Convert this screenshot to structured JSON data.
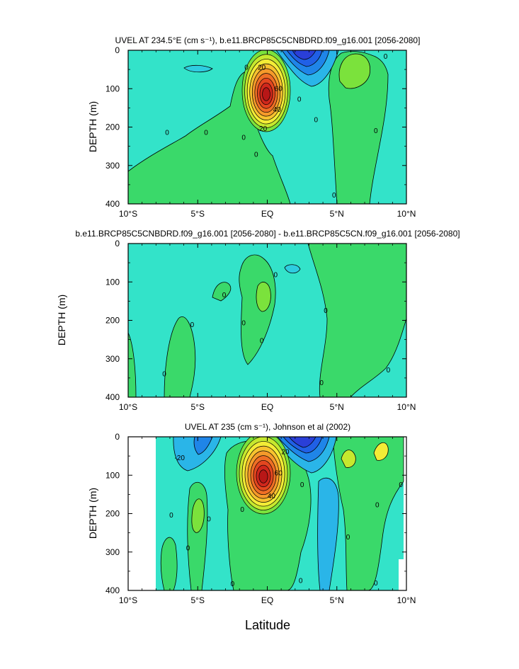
{
  "chart_data": [
    {
      "type": "contour",
      "title": "UVEL AT 234.5°E (cm s⁻¹), b.e11.BRCP85C5CNBDRD.f09_g16.001 [2056-2080]",
      "ylabel": "DEPTH (m)",
      "xlabel": "",
      "x_ticks": [
        "10°S",
        "5°S",
        "EQ",
        "5°N",
        "10°N"
      ],
      "y_ticks": [
        "0",
        "100",
        "200",
        "300",
        "400"
      ],
      "xlim": [
        -10,
        10
      ],
      "ylim": [
        400,
        0
      ],
      "contour_interval": 10,
      "contour_labels": [
        {
          "text": "20",
          "lat": -0.4,
          "depth": 45
        },
        {
          "text": "60",
          "lat": 0.8,
          "depth": 100
        },
        {
          "text": "40",
          "lat": 0.7,
          "depth": 155
        },
        {
          "text": "20",
          "lat": -0.3,
          "depth": 205
        },
        {
          "text": "0",
          "lat": -7.2,
          "depth": 215
        },
        {
          "text": "0",
          "lat": -4.4,
          "depth": 215
        },
        {
          "text": "0",
          "lat": -1.7,
          "depth": 228
        },
        {
          "text": "0",
          "lat": -0.8,
          "depth": 272
        },
        {
          "text": "0",
          "lat": -1.5,
          "depth": 45
        },
        {
          "text": "0",
          "lat": 2.3,
          "depth": 128
        },
        {
          "text": "0",
          "lat": 3.5,
          "depth": 182
        },
        {
          "text": "0",
          "lat": 7.8,
          "depth": 210
        },
        {
          "text": "0",
          "lat": 8.5,
          "depth": 17
        },
        {
          "text": "0",
          "lat": 4.8,
          "depth": 378
        }
      ]
    },
    {
      "type": "contour",
      "title": "b.e11.BRCP85C5CNBDRD.f09_g16.001 [2056-2080] - b.e11.BRCP85C5CN.f09_g16.001 [2056-2080]",
      "ylabel": "DEPTH (m)",
      "xlabel": "",
      "x_ticks": [
        "10°S",
        "5°S",
        "EQ",
        "5°N",
        "10°N"
      ],
      "y_ticks": [
        "0",
        "100",
        "200",
        "300",
        "400"
      ],
      "xlim": [
        -10,
        10
      ],
      "ylim": [
        400,
        0
      ],
      "contour_labels": [
        {
          "text": "0",
          "lat": 0.6,
          "depth": 82
        },
        {
          "text": "0",
          "lat": -3.1,
          "depth": 135
        },
        {
          "text": "0",
          "lat": -1.7,
          "depth": 207
        },
        {
          "text": "0",
          "lat": -0.4,
          "depth": 253
        },
        {
          "text": "0",
          "lat": 4.2,
          "depth": 175
        },
        {
          "text": "0",
          "lat": -5.4,
          "depth": 212
        },
        {
          "text": "0",
          "lat": -7.4,
          "depth": 340
        },
        {
          "text": "0",
          "lat": 3.9,
          "depth": 363
        },
        {
          "text": "0",
          "lat": 8.7,
          "depth": 330
        }
      ]
    },
    {
      "type": "contour",
      "title": "UVEL AT 235 (cm s⁻¹), Johnson et al (2002)",
      "ylabel": "DEPTH (m)",
      "xlabel": "Latitude",
      "x_ticks": [
        "10°S",
        "5°S",
        "EQ",
        "5°N",
        "10°N"
      ],
      "y_ticks": [
        "0",
        "100",
        "200",
        "300",
        "400"
      ],
      "xlim": [
        -10,
        10
      ],
      "ylim": [
        400,
        0
      ],
      "contour_labels": [
        {
          "text": "-20",
          "lat": -6.3,
          "depth": 55
        },
        {
          "text": "20",
          "lat": 1.3,
          "depth": 40
        },
        {
          "text": "60",
          "lat": 0.8,
          "depth": 95
        },
        {
          "text": "40",
          "lat": 0.3,
          "depth": 155
        },
        {
          "text": "0",
          "lat": -5.7,
          "depth": 290
        },
        {
          "text": "0",
          "lat": -6.9,
          "depth": 205
        },
        {
          "text": "0",
          "lat": -4.2,
          "depth": 215
        },
        {
          "text": "0",
          "lat": -1.8,
          "depth": 190
        },
        {
          "text": "0",
          "lat": 2.5,
          "depth": 125
        },
        {
          "text": "0",
          "lat": 5.8,
          "depth": 262
        },
        {
          "text": "0",
          "lat": 7.9,
          "depth": 178
        },
        {
          "text": "0",
          "lat": 9.6,
          "depth": 125
        },
        {
          "text": "0",
          "lat": -2.5,
          "depth": 383
        },
        {
          "text": "0",
          "lat": 2.4,
          "depth": 375
        },
        {
          "text": "0",
          "lat": 7.8,
          "depth": 382
        }
      ]
    }
  ]
}
